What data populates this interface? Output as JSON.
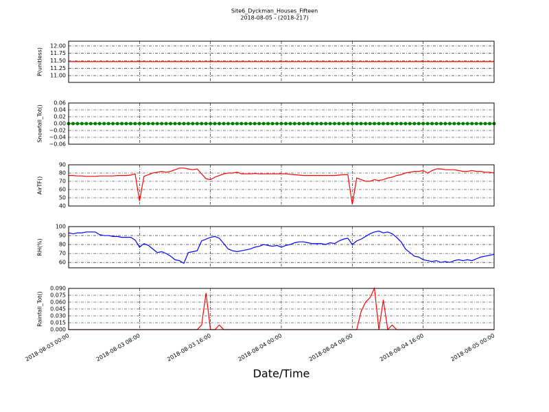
{
  "title": "Site6_Dyckman_Houses_Fifteen",
  "subtitle": "2018-08-05 - (2018-217)",
  "xlabel": "Date/Time",
  "xlim": [
    "2018-08-03 00:00",
    "2018-08-05 00:00"
  ],
  "xticks": [
    "2018-08-03 00:00",
    "2018-08-03 08:00",
    "2018-08-03 16:00",
    "2018-08-04 00:00",
    "2018-08-04 08:00",
    "2018-08-04 16:00",
    "2018-08-05 00:00"
  ],
  "x": [
    "2018-08-03 00:00",
    "2018-08-03 00:30",
    "2018-08-03 01:00",
    "2018-08-03 01:30",
    "2018-08-03 02:00",
    "2018-08-03 02:30",
    "2018-08-03 03:00",
    "2018-08-03 03:30",
    "2018-08-03 04:00",
    "2018-08-03 04:30",
    "2018-08-03 05:00",
    "2018-08-03 05:30",
    "2018-08-03 06:00",
    "2018-08-03 06:30",
    "2018-08-03 07:00",
    "2018-08-03 07:30",
    "2018-08-03 08:00",
    "2018-08-03 08:30",
    "2018-08-03 09:00",
    "2018-08-03 09:30",
    "2018-08-03 10:00",
    "2018-08-03 10:30",
    "2018-08-03 11:00",
    "2018-08-03 11:30",
    "2018-08-03 12:00",
    "2018-08-03 12:30",
    "2018-08-03 13:00",
    "2018-08-03 13:30",
    "2018-08-03 14:00",
    "2018-08-03 14:30",
    "2018-08-03 15:00",
    "2018-08-03 15:30",
    "2018-08-03 16:00",
    "2018-08-03 16:30",
    "2018-08-03 17:00",
    "2018-08-03 17:30",
    "2018-08-03 18:00",
    "2018-08-03 18:30",
    "2018-08-03 19:00",
    "2018-08-03 19:30",
    "2018-08-03 20:00",
    "2018-08-03 20:30",
    "2018-08-03 21:00",
    "2018-08-03 21:30",
    "2018-08-03 22:00",
    "2018-08-03 22:30",
    "2018-08-03 23:00",
    "2018-08-03 23:30",
    "2018-08-04 00:00",
    "2018-08-04 00:30",
    "2018-08-04 01:00",
    "2018-08-04 01:30",
    "2018-08-04 02:00",
    "2018-08-04 02:30",
    "2018-08-04 03:00",
    "2018-08-04 03:30",
    "2018-08-04 04:00",
    "2018-08-04 04:30",
    "2018-08-04 05:00",
    "2018-08-04 05:30",
    "2018-08-04 06:00",
    "2018-08-04 06:30",
    "2018-08-04 07:00",
    "2018-08-04 07:30",
    "2018-08-04 08:00",
    "2018-08-04 08:30",
    "2018-08-04 09:00",
    "2018-08-04 09:30",
    "2018-08-04 10:00",
    "2018-08-04 10:30",
    "2018-08-04 11:00",
    "2018-08-04 11:30",
    "2018-08-04 12:00",
    "2018-08-04 12:30",
    "2018-08-04 13:00",
    "2018-08-04 13:30",
    "2018-08-04 14:00",
    "2018-08-04 14:30",
    "2018-08-04 15:00",
    "2018-08-04 15:30",
    "2018-08-04 16:00",
    "2018-08-04 16:30",
    "2018-08-04 17:00",
    "2018-08-04 17:30",
    "2018-08-04 18:00",
    "2018-08-04 18:30",
    "2018-08-04 19:00",
    "2018-08-04 19:30",
    "2018-08-04 20:00",
    "2018-08-04 20:30",
    "2018-08-04 21:00",
    "2018-08-04 21:30",
    "2018-08-04 22:00",
    "2018-08-04 22:30",
    "2018-08-04 23:00",
    "2018-08-04 23:30",
    "2018-08-05 00:00"
  ],
  "chart_data": [
    {
      "type": "line",
      "ylabel": "P(unitless)",
      "color": "#ff0000",
      "grid": true,
      "ylim": [
        10.77,
        12.16
      ],
      "yticks": [
        {
          "value": 11,
          "label": "11.00"
        },
        {
          "value": 11.25,
          "label": "11.25"
        },
        {
          "value": 11.5,
          "label": "11.50"
        },
        {
          "value": 11.75,
          "label": "11.75"
        },
        {
          "value": 12,
          "label": "12.00"
        }
      ],
      "values": [
        11.47,
        11.47,
        11.47,
        11.47,
        11.47,
        11.47,
        11.47,
        11.47,
        11.47,
        11.47,
        11.47,
        11.47,
        11.47,
        11.47,
        11.47,
        11.47,
        11.47,
        11.47,
        11.47,
        11.47,
        11.47,
        11.47,
        11.47,
        11.47,
        11.47,
        11.47,
        11.47,
        11.47,
        11.47,
        11.47,
        11.47,
        11.47,
        11.47,
        11.47,
        11.47,
        11.47,
        11.47,
        11.47,
        11.47,
        11.47,
        11.47,
        11.47,
        11.47,
        11.47,
        11.47,
        11.47,
        11.47,
        11.47,
        11.47,
        11.47,
        11.47,
        11.47,
        11.47,
        11.47,
        11.47,
        11.47,
        11.47,
        11.47,
        11.47,
        11.47,
        11.47,
        11.47,
        11.47,
        11.47,
        11.47,
        11.47,
        11.47,
        11.47,
        11.47,
        11.47,
        11.47,
        11.47,
        11.47,
        11.47,
        11.47,
        11.47,
        11.47,
        11.47,
        11.47,
        11.47,
        11.47,
        11.47,
        11.47,
        11.47,
        11.47,
        11.47,
        11.47,
        11.47,
        11.47,
        11.47,
        11.47,
        11.47,
        11.47,
        11.47,
        11.47,
        11.47,
        11.47
      ]
    },
    {
      "type": "line",
      "ylabel": "Snowfall_Tot()",
      "color": "#008000",
      "markers": true,
      "grid": true,
      "ylim": [
        -0.06,
        0.06
      ],
      "yticks": [
        {
          "value": -0.06,
          "label": "−0.06"
        },
        {
          "value": -0.04,
          "label": "−0.04"
        },
        {
          "value": -0.02,
          "label": "−0.02"
        },
        {
          "value": 0,
          "label": "0.00"
        },
        0.02,
        0.04,
        0.06
      ],
      "values": [
        0,
        0,
        0,
        0,
        0,
        0,
        0,
        0,
        0,
        0,
        0,
        0,
        0,
        0,
        0,
        0,
        0,
        0,
        0,
        0,
        0,
        0,
        0,
        0,
        0,
        0,
        0,
        0,
        0,
        0,
        0,
        0,
        0,
        0,
        0,
        0,
        0,
        0,
        0,
        0,
        0,
        0,
        0,
        0,
        0,
        0,
        0,
        0,
        0,
        0,
        0,
        0,
        0,
        0,
        0,
        0,
        0,
        0,
        0,
        0,
        0,
        0,
        0,
        0,
        0,
        0,
        0,
        0,
        0,
        0,
        0,
        0,
        0,
        0,
        0,
        0,
        0,
        0,
        0,
        0,
        0,
        0,
        0,
        0,
        0,
        0,
        0,
        0,
        0,
        0,
        0,
        0,
        0,
        0,
        0,
        0,
        0
      ]
    },
    {
      "type": "line",
      "ylabel": "AirTF()",
      "color": "#ff0000",
      "grid": true,
      "ylim": [
        40,
        90
      ],
      "yticks": [
        40,
        50,
        60,
        70,
        80,
        90
      ],
      "values": [
        77,
        77,
        76.5,
        76.5,
        76,
        76,
        76,
        76.5,
        76.5,
        76.5,
        76.5,
        77,
        77,
        77,
        77.5,
        79,
        46,
        76,
        78,
        80,
        81,
        82,
        81,
        82,
        84,
        86,
        86,
        85,
        84,
        85,
        79,
        73,
        72,
        75,
        77,
        79,
        80,
        80,
        81,
        79,
        79,
        79,
        79.5,
        79,
        79,
        79,
        79,
        79,
        79,
        79,
        78.5,
        78,
        77.5,
        77,
        77,
        77,
        77,
        77,
        77,
        77,
        77,
        77.5,
        78,
        78,
        42,
        74,
        72,
        70,
        70,
        72,
        71,
        72,
        74,
        75,
        77,
        78,
        80,
        81,
        82,
        82,
        83,
        80,
        83,
        85,
        85,
        84,
        84,
        84,
        83,
        82,
        82,
        83,
        82,
        82,
        81,
        81,
        80
      ]
    },
    {
      "type": "line",
      "ylabel": "RH(%)",
      "color": "#0000ff",
      "grid": true,
      "ylim": [
        54,
        100
      ],
      "yticks": [
        60,
        70,
        80,
        90,
        100
      ],
      "values": [
        93,
        92,
        93,
        93,
        94,
        94,
        94,
        91,
        90,
        90,
        89,
        89,
        88,
        88,
        88,
        85,
        77,
        81,
        79,
        75,
        71,
        72,
        70,
        67,
        63,
        62,
        59,
        71,
        72,
        73,
        84,
        86,
        88,
        89,
        87,
        81,
        75,
        73,
        72,
        73,
        74,
        75,
        77,
        78,
        80,
        79,
        78,
        79,
        77,
        79,
        80,
        82,
        83,
        83,
        82,
        81,
        81,
        81,
        80,
        82,
        81,
        84,
        86,
        87,
        80,
        84,
        86,
        89,
        92,
        94,
        95,
        93,
        94,
        92,
        88,
        83,
        75,
        71,
        67,
        66,
        63,
        62,
        61,
        62,
        60,
        61,
        60,
        62,
        63,
        62,
        63,
        62,
        64,
        66,
        67,
        68,
        69
      ]
    },
    {
      "type": "line",
      "ylabel": "Rainfall_Tot()",
      "color": "#ff0000",
      "grid": true,
      "ylim": [
        0,
        0.09
      ],
      "yticks": [
        {
          "value": 0,
          "label": "0.000"
        },
        {
          "value": 0.015,
          "label": "0.015"
        },
        {
          "value": 0.03,
          "label": "0.030"
        },
        {
          "value": 0.045,
          "label": "0.045"
        },
        {
          "value": 0.06,
          "label": "0.060"
        },
        {
          "value": 0.075,
          "label": "0.075"
        },
        {
          "value": 0.09,
          "label": "0.090"
        }
      ],
      "values": [
        0,
        0,
        0,
        0,
        0,
        0,
        0,
        0,
        0,
        0,
        0,
        0,
        0,
        0,
        0,
        0,
        0,
        0,
        0,
        0,
        0,
        0,
        0,
        0,
        0,
        0,
        0,
        0,
        0,
        0,
        0.01,
        0.08,
        0,
        0,
        0.01,
        0,
        0,
        0,
        0,
        0,
        0,
        0,
        0,
        0,
        0,
        0,
        0,
        0,
        0,
        0,
        0,
        0,
        0,
        0,
        0,
        0,
        0,
        0,
        0,
        0,
        0,
        0,
        0,
        0,
        0,
        0,
        0.04,
        0.06,
        0.07,
        0.09,
        0,
        0.065,
        0,
        0.01,
        0,
        0,
        0,
        0,
        0,
        0,
        0,
        0,
        0,
        0,
        0,
        0,
        0,
        0,
        0,
        0,
        0,
        0,
        0,
        0,
        0,
        0,
        0
      ]
    }
  ]
}
